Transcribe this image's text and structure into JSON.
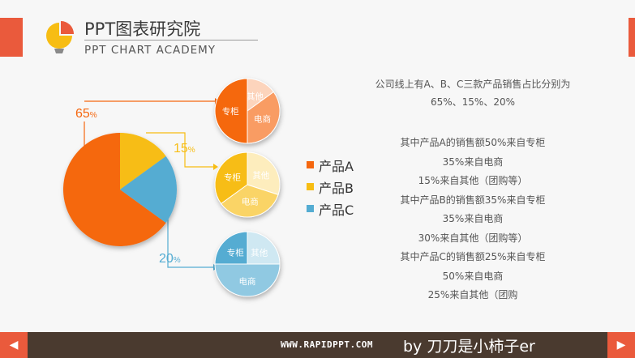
{
  "header": {
    "title": "PPT图表研究院",
    "subtitle": "PPT CHART ACADEMY"
  },
  "colors": {
    "A": "#f5670f",
    "B": "#f7bd13",
    "C": "#54acd2",
    "accent": "#ea5a3c",
    "footer": "#4a3a2f"
  },
  "chart_data": [
    {
      "type": "pie",
      "categories": [
        "产品A",
        "产品B",
        "产品C"
      ],
      "values": [
        65,
        15,
        20
      ],
      "labels": [
        "65%",
        "15%",
        "20%"
      ]
    },
    {
      "type": "pie",
      "product": "产品A",
      "categories": [
        "专柜",
        "电商",
        "其他"
      ],
      "values": [
        50,
        35,
        15
      ]
    },
    {
      "type": "pie",
      "product": "产品B",
      "categories": [
        "专柜",
        "电商",
        "其他"
      ],
      "values": [
        35,
        35,
        30
      ]
    },
    {
      "type": "pie",
      "product": "产品C",
      "categories": [
        "专柜",
        "电商",
        "其他"
      ],
      "values": [
        25,
        50,
        25
      ]
    }
  ],
  "legend": [
    "产品A",
    "产品B",
    "产品C"
  ],
  "intro": [
    "公司线上有A、B、C三款产品销售占比分别为",
    "65%、15%、20%"
  ],
  "details": [
    "其中产品A的销售额50%来自专柜",
    "35%来自电商",
    "15%来自其他（团购等）",
    "其中产品B的销售额35%来自专柜",
    "35%来自电商",
    "30%来自其他（团购等）",
    "其中产品C的销售额25%来自专柜",
    "50%来自电商",
    "25%来自其他（团购"
  ],
  "footer": {
    "website": "WWW.RAPIDPPT.COM",
    "byline": "by 刀刀是小柿子er",
    "prev_icon": "◀",
    "next_icon": "▶"
  }
}
